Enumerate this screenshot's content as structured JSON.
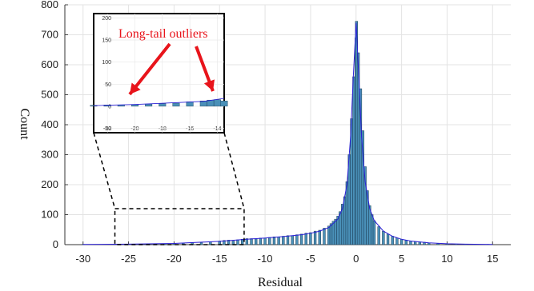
{
  "chart_data": {
    "type": "bar",
    "xlabel": "Residual",
    "ylabel": "Count",
    "xlim": [
      -32,
      17
    ],
    "ylim": [
      0,
      800
    ],
    "x_ticks": [
      -30,
      -25,
      -20,
      -15,
      -10,
      -5,
      0,
      5,
      10,
      15
    ],
    "y_ticks": [
      0,
      100,
      200,
      300,
      400,
      500,
      600,
      700,
      800
    ],
    "grid": true,
    "bar_color": "#4a90b8",
    "curve_color": "#2a1fd6",
    "bin_width": 0.25,
    "bins": [
      [
        -30,
        1
      ],
      [
        -26.5,
        1
      ],
      [
        -24.5,
        1
      ],
      [
        -23,
        2
      ],
      [
        -22,
        3
      ],
      [
        -21,
        3
      ],
      [
        -20,
        4
      ],
      [
        -19,
        5
      ],
      [
        -18,
        6
      ],
      [
        -17,
        7
      ],
      [
        -16,
        10
      ],
      [
        -15,
        12
      ],
      [
        -14.5,
        14
      ],
      [
        -14,
        15
      ],
      [
        -13.5,
        12
      ],
      [
        -13,
        16
      ],
      [
        -12.5,
        18
      ],
      [
        -12,
        20
      ],
      [
        -11.5,
        20
      ],
      [
        -11,
        19
      ],
      [
        -10.5,
        22
      ],
      [
        -10,
        22
      ],
      [
        -9.5,
        24
      ],
      [
        -9,
        26
      ],
      [
        -8.5,
        26
      ],
      [
        -8,
        28
      ],
      [
        -7.5,
        30
      ],
      [
        -7,
        30
      ],
      [
        -6.5,
        33
      ],
      [
        -6,
        35
      ],
      [
        -5.5,
        38
      ],
      [
        -5,
        40
      ],
      [
        -4.5,
        45
      ],
      [
        -4,
        48
      ],
      [
        -3.5,
        55
      ],
      [
        -3,
        62
      ],
      [
        -2.75,
        70
      ],
      [
        -2.5,
        78
      ],
      [
        -2.25,
        85
      ],
      [
        -2,
        95
      ],
      [
        -1.75,
        110
      ],
      [
        -1.5,
        135
      ],
      [
        -1.25,
        160
      ],
      [
        -1,
        210
      ],
      [
        -0.75,
        300
      ],
      [
        -0.5,
        420
      ],
      [
        -0.25,
        560
      ],
      [
        0,
        690
      ],
      [
        0.05,
        745
      ],
      [
        0.25,
        640
      ],
      [
        0.5,
        520
      ],
      [
        0.75,
        380
      ],
      [
        1,
        260
      ],
      [
        1.25,
        180
      ],
      [
        1.5,
        130
      ],
      [
        1.75,
        100
      ],
      [
        2,
        80
      ],
      [
        2.5,
        60
      ],
      [
        3,
        45
      ],
      [
        3.5,
        35
      ],
      [
        4,
        28
      ],
      [
        4.5,
        22
      ],
      [
        5,
        18
      ],
      [
        5.5,
        15
      ],
      [
        6,
        12
      ],
      [
        6.5,
        10
      ],
      [
        7,
        9
      ],
      [
        7.5,
        8
      ],
      [
        8,
        6
      ],
      [
        9,
        4
      ],
      [
        10,
        3
      ],
      [
        11,
        2
      ],
      [
        12,
        2
      ],
      [
        13,
        1
      ],
      [
        14.5,
        1
      ]
    ],
    "curve_x": [
      -30,
      -25,
      -20,
      -15,
      -12,
      -10,
      -8,
      -6,
      -5,
      -4,
      -3,
      -2,
      -1.5,
      -1,
      -0.6,
      -0.3,
      0,
      0.3,
      0.6,
      1,
      1.5,
      2,
      3,
      4,
      5,
      6,
      8,
      10,
      12,
      15
    ],
    "curve_y": [
      0.5,
      1.5,
      4,
      11,
      18,
      22,
      27,
      33,
      38,
      45,
      57,
      85,
      120,
      200,
      360,
      560,
      740,
      560,
      360,
      210,
      120,
      80,
      45,
      28,
      18,
      12,
      6,
      3,
      1.5,
      0.5
    ],
    "inset": {
      "xlim": [
        -23,
        -13.5
      ],
      "ylim": [
        -60,
        210
      ],
      "x_ticks": [
        -22,
        -20,
        -18,
        -16,
        -14
      ],
      "y_ticks": [
        -50,
        0,
        50,
        100,
        150,
        200
      ],
      "source_box": {
        "x": [
          -26.5,
          -12.3
        ],
        "y": [
          0,
          120
        ]
      }
    },
    "annotation": "Long-tail outliers"
  }
}
